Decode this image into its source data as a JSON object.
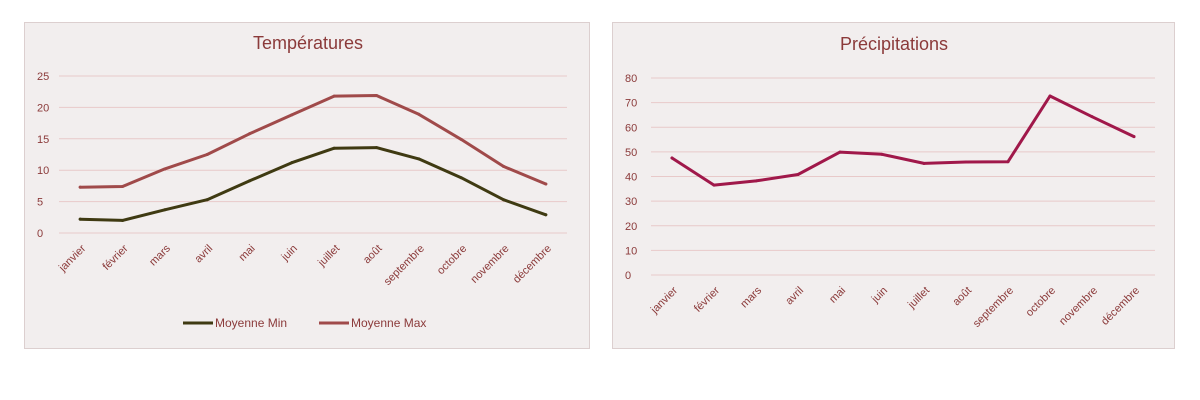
{
  "chart_data": [
    {
      "type": "line",
      "title": "Températures",
      "categories": [
        "janvier",
        "février",
        "mars",
        "avril",
        "mai",
        "juin",
        "juillet",
        "août",
        "septembre",
        "octobre",
        "novembre",
        "décembre"
      ],
      "ylim": [
        0,
        25
      ],
      "yticks": [
        0,
        5,
        10,
        15,
        20,
        25
      ],
      "grid": true,
      "legend": "bottom",
      "series": [
        {
          "name": "Moyenne Min",
          "color": "#3f3a12",
          "values": [
            2.2,
            2.0,
            3.7,
            5.3,
            8.3,
            11.2,
            13.5,
            13.6,
            11.8,
            8.8,
            5.3,
            2.9
          ]
        },
        {
          "name": "Moyenne Max",
          "color": "#a04a4a",
          "values": [
            7.3,
            7.4,
            10.2,
            12.5,
            15.8,
            18.8,
            21.8,
            21.9,
            18.9,
            14.9,
            10.6,
            7.8
          ]
        }
      ]
    },
    {
      "type": "line",
      "title": "Précipitations",
      "categories": [
        "janvier",
        "février",
        "mars",
        "avril",
        "mai",
        "juin",
        "juillet",
        "août",
        "septembre",
        "octobre",
        "novembre",
        "décembre"
      ],
      "ylim": [
        0,
        80
      ],
      "yticks": [
        0,
        10,
        20,
        30,
        40,
        50,
        60,
        70,
        80
      ],
      "grid": true,
      "legend": "none",
      "series": [
        {
          "name": "",
          "color": "#a0184a",
          "values": [
            47.5,
            36.5,
            38.2,
            40.8,
            49.9,
            49.0,
            45.3,
            45.9,
            46.0,
            72.7,
            64.3,
            56.2
          ]
        }
      ]
    }
  ]
}
